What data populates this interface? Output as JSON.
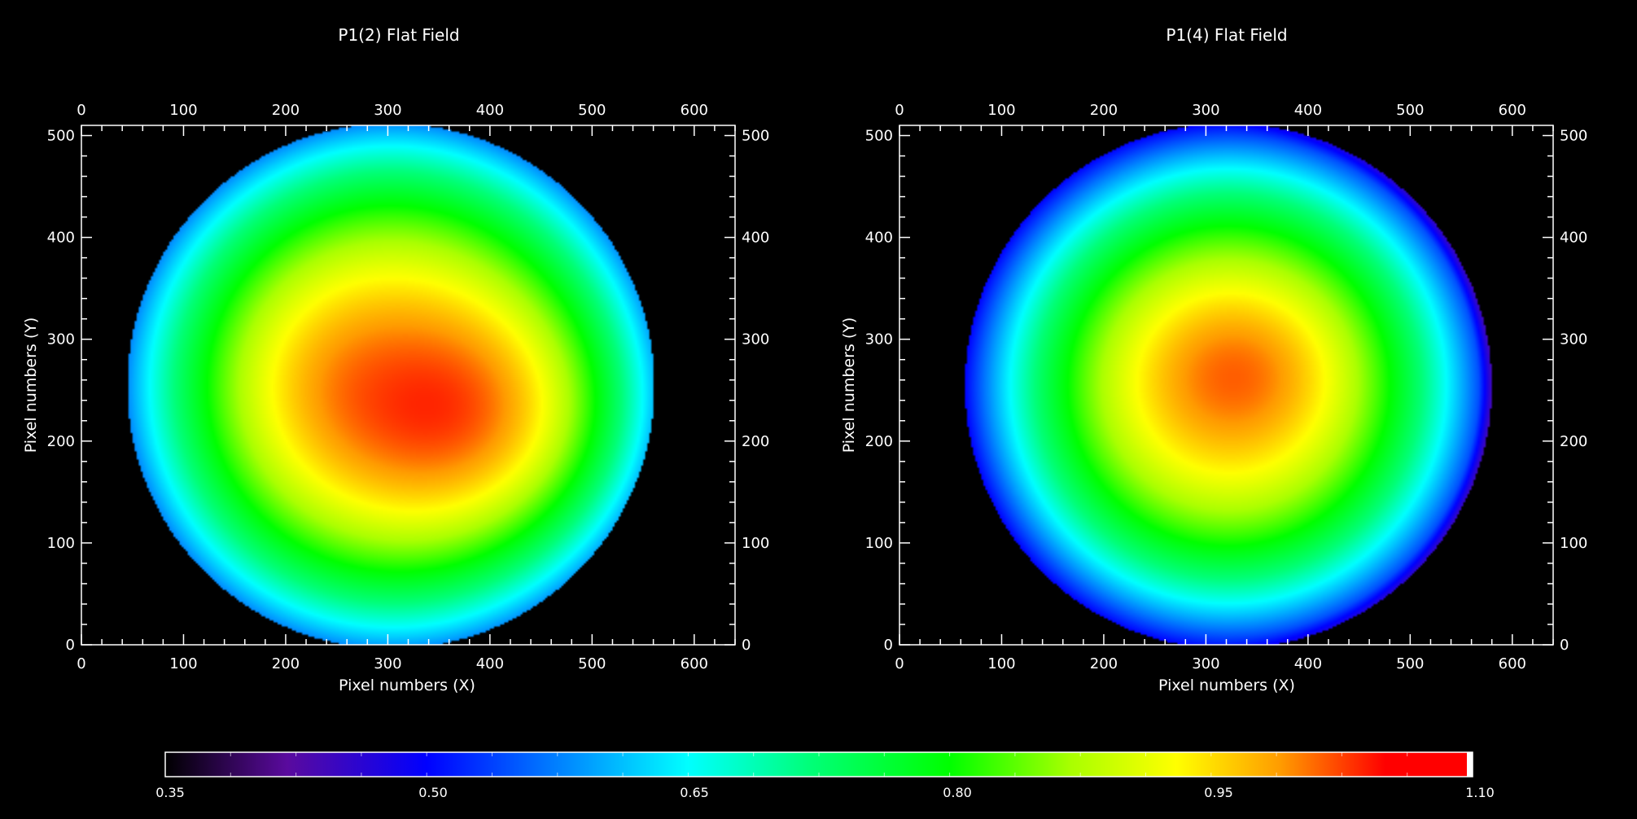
{
  "chart_data": [
    {
      "type": "heatmap",
      "title": "P1(2) Flat Field",
      "xlabel": "Pixel numbers (X)",
      "ylabel": "Pixel numbers (Y)",
      "xlim": [
        0,
        640
      ],
      "ylim": [
        0,
        510
      ],
      "x_ticks": [
        0,
        100,
        200,
        300,
        400,
        500,
        600
      ],
      "y_ticks": [
        0,
        100,
        200,
        300,
        400,
        500
      ],
      "disk": {
        "center_x": 303,
        "center_y": 254,
        "radius": 258
      },
      "peak": {
        "x": 405,
        "y": 218,
        "value": 1.05
      },
      "secondary_peak": {
        "x": 225,
        "y": 260,
        "value": 0.98
      },
      "edge_value": 0.58
    },
    {
      "type": "heatmap",
      "title": "P1(4) Flat Field",
      "xlabel": "Pixel numbers (X)",
      "ylabel": "Pixel numbers (Y)",
      "xlim": [
        0,
        640
      ],
      "ylim": [
        0,
        510
      ],
      "x_ticks": [
        0,
        100,
        200,
        300,
        400,
        500,
        600
      ],
      "y_ticks": [
        0,
        100,
        200,
        300,
        400,
        500
      ],
      "disk": {
        "center_x": 322,
        "center_y": 254,
        "radius": 258
      },
      "peak": {
        "x": 335,
        "y": 270,
        "value": 1.01
      },
      "edge_value": 0.5
    }
  ],
  "colorbar": {
    "min": 0.35,
    "max": 1.1,
    "tick_labels": [
      "0.35",
      "0.50",
      "0.65",
      "0.80",
      "0.95",
      "1.10"
    ],
    "tick_values": [
      0.35,
      0.5,
      0.65,
      0.8,
      0.95,
      1.1
    ]
  },
  "colormap_stops": [
    {
      "value": 0.35,
      "color": "#000000"
    },
    {
      "value": 0.42,
      "color": "#5a0a9e"
    },
    {
      "value": 0.5,
      "color": "#0000ff"
    },
    {
      "value": 0.57,
      "color": "#0078ff"
    },
    {
      "value": 0.65,
      "color": "#00ffff"
    },
    {
      "value": 0.72,
      "color": "#00ff78"
    },
    {
      "value": 0.8,
      "color": "#00ff00"
    },
    {
      "value": 0.87,
      "color": "#aaff00"
    },
    {
      "value": 0.93,
      "color": "#ffff00"
    },
    {
      "value": 0.99,
      "color": "#ff9b00"
    },
    {
      "value": 1.05,
      "color": "#ff0000"
    },
    {
      "value": 1.1,
      "color": "#ff0000"
    }
  ],
  "colors": {
    "background": "#000000",
    "axes": "#ffffff",
    "text": "#ffffff"
  }
}
